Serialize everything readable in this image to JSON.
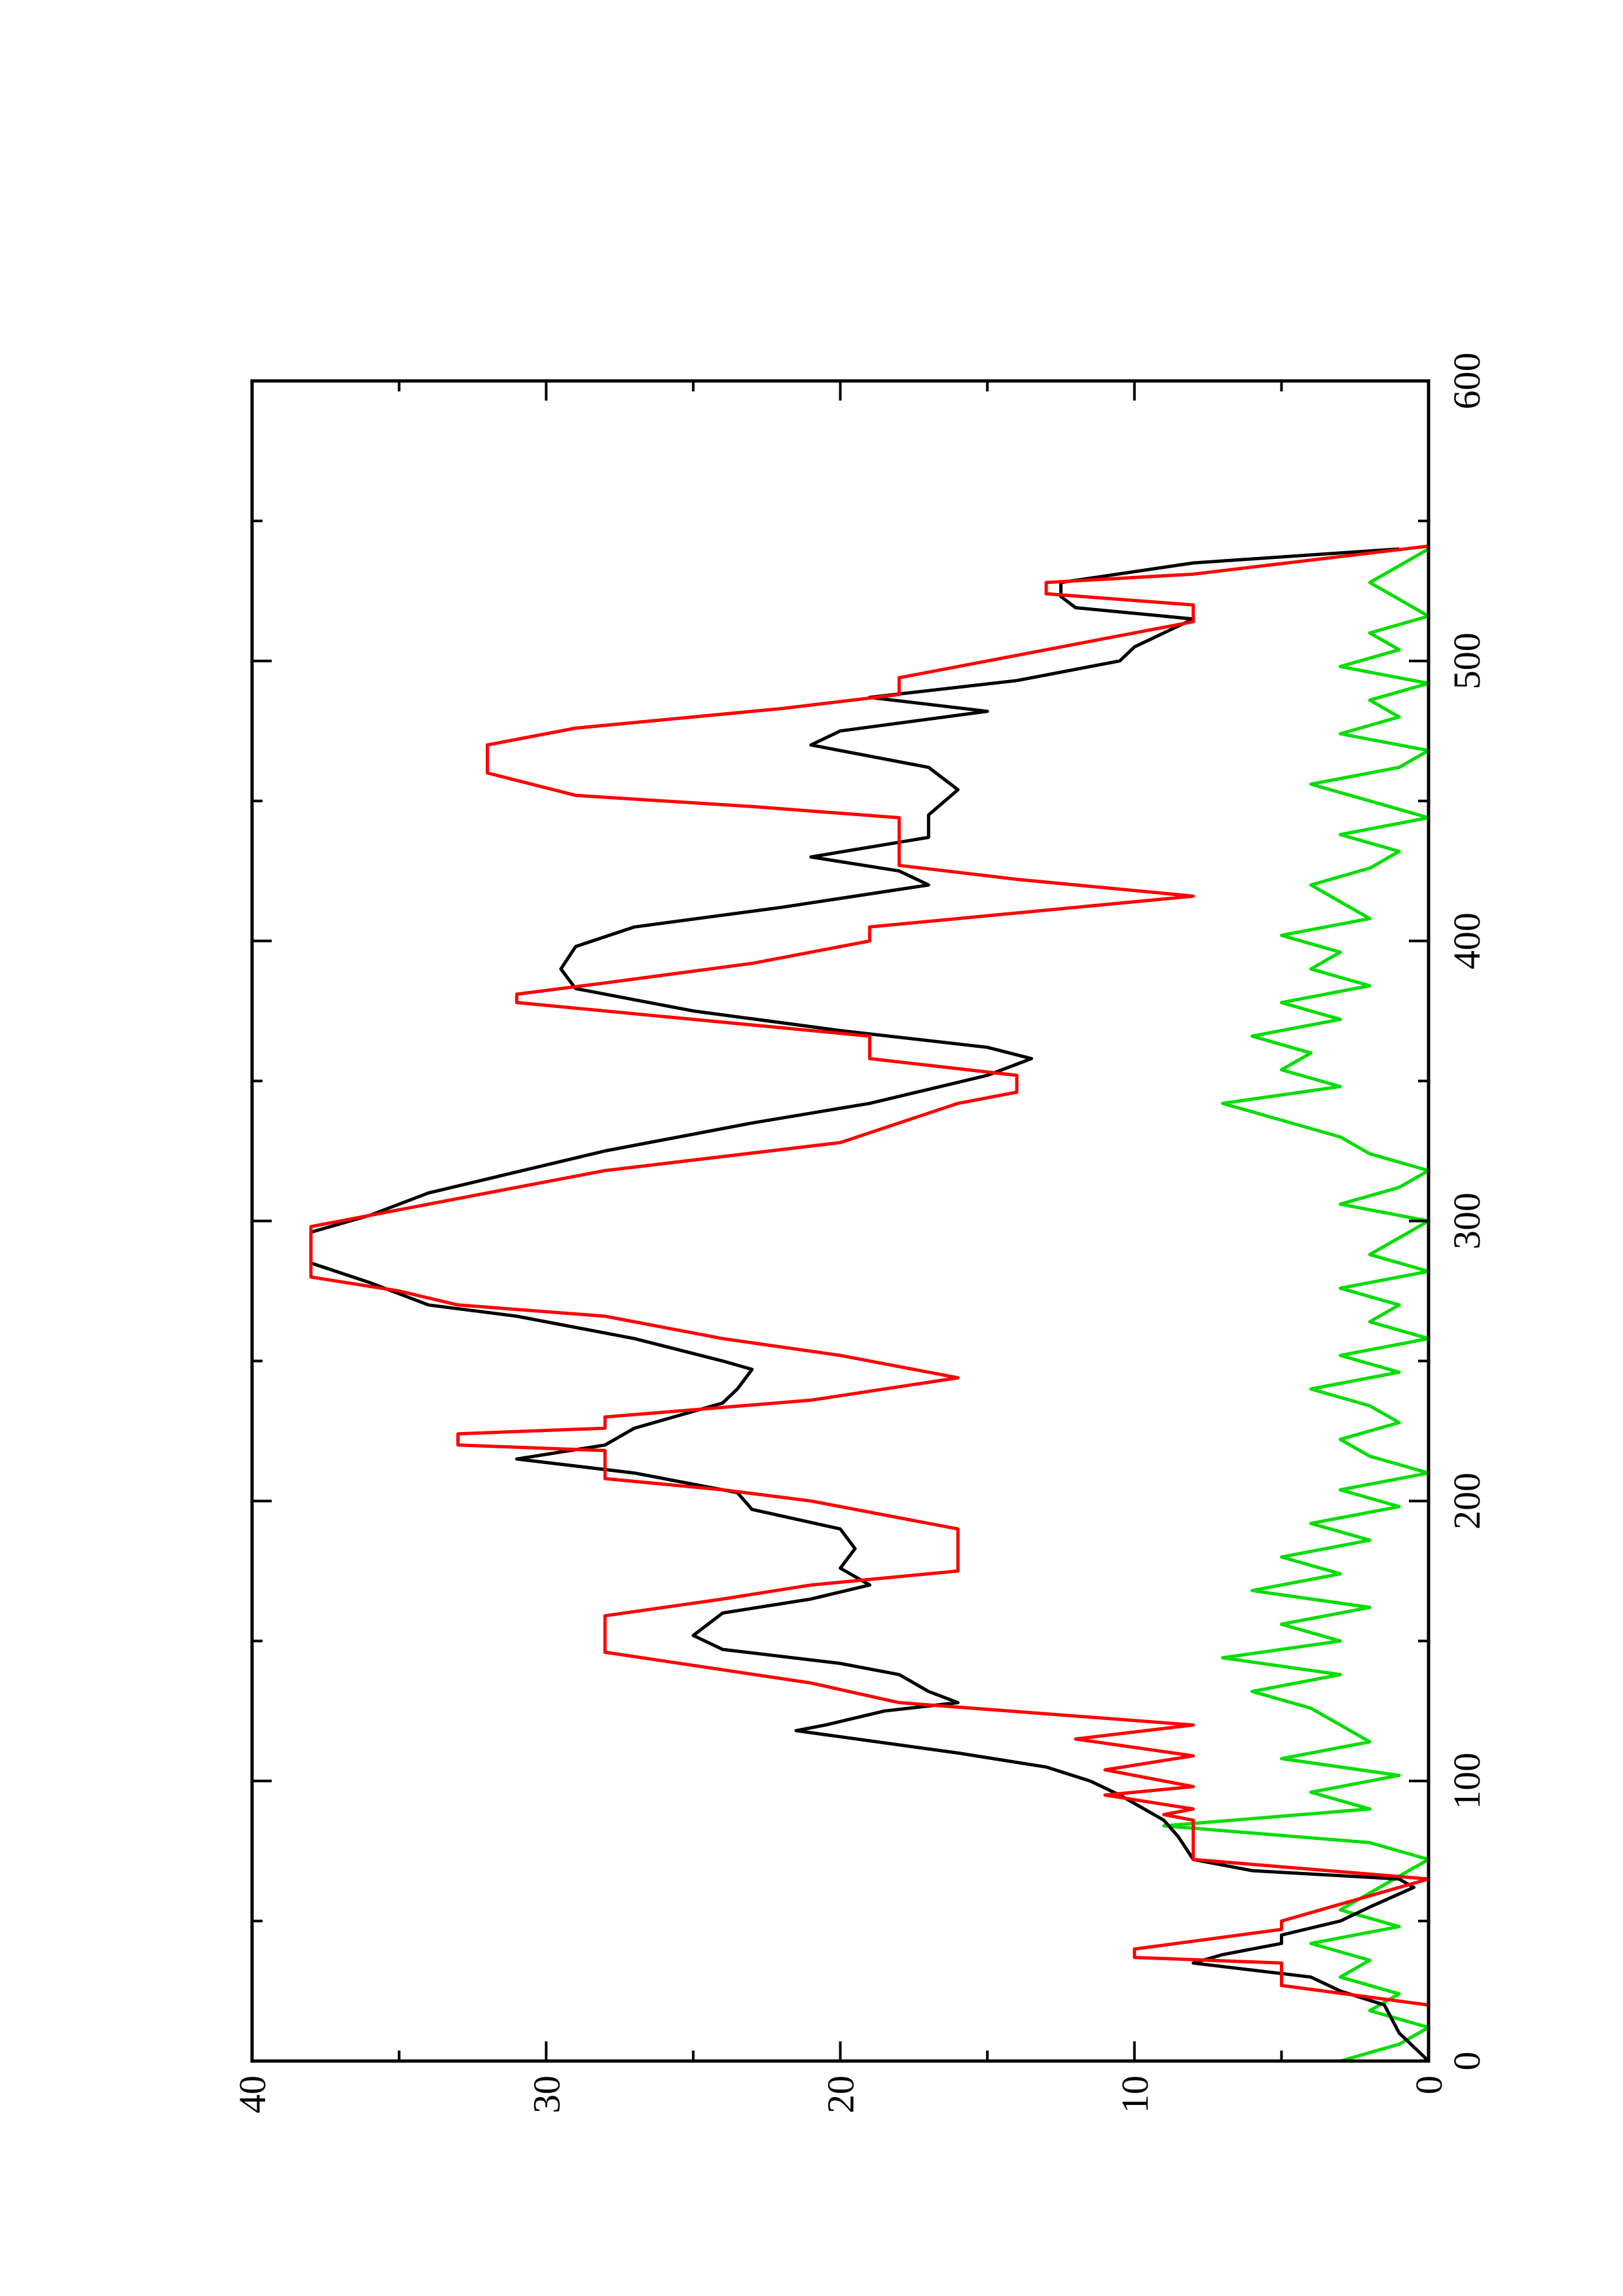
{
  "chart_data": {
    "type": "line",
    "xlim": [
      0,
      600
    ],
    "xticks": [
      0,
      100,
      200,
      300,
      400,
      500,
      600
    ],
    "xticks_minor": [
      50,
      150,
      250,
      350,
      450,
      550
    ],
    "ylim": [
      0,
      40
    ],
    "yticks": [
      0,
      10,
      20,
      30,
      40
    ],
    "yticks_minor": [
      5,
      15,
      25,
      35
    ],
    "rotated": true,
    "series": [
      {
        "color": "#00dd00",
        "x": [
          0,
          6,
          12,
          18,
          24,
          30,
          36,
          42,
          48,
          54,
          60,
          66,
          72,
          78,
          84,
          90,
          96,
          102,
          108,
          114,
          120,
          126,
          132,
          138,
          144,
          150,
          156,
          162,
          168,
          174,
          180,
          186,
          192,
          198,
          204,
          210,
          216,
          222,
          228,
          234,
          240,
          246,
          252,
          258,
          264,
          270,
          276,
          282,
          288,
          294,
          300,
          306,
          312,
          318,
          324,
          330,
          336,
          342,
          348,
          354,
          360,
          366,
          372,
          378,
          384,
          390,
          396,
          402,
          408,
          414,
          420,
          426,
          432,
          438,
          444,
          450,
          456,
          462,
          468,
          474,
          480,
          486,
          492,
          498,
          504,
          510,
          516,
          522,
          528,
          534,
          540
        ],
        "values": [
          3,
          1,
          0,
          2,
          1,
          3,
          2,
          4,
          1,
          3,
          2,
          1,
          0,
          2,
          9,
          2,
          4,
          1,
          5,
          2,
          3,
          4,
          6,
          3,
          7,
          3,
          5,
          2,
          6,
          3,
          5,
          2,
          4,
          1,
          3,
          0,
          2,
          3,
          1,
          2,
          4,
          1,
          3,
          0,
          2,
          1,
          3,
          0,
          2,
          1,
          0,
          3,
          1,
          0,
          2,
          3,
          5,
          7,
          3,
          5,
          4,
          6,
          3,
          5,
          2,
          4,
          3,
          5,
          2,
          3,
          4,
          2,
          1,
          3,
          0,
          2,
          4,
          1,
          0,
          3,
          1,
          2,
          0,
          3,
          1,
          2,
          0,
          1,
          2,
          1,
          0
        ]
      },
      {
        "color": "#000000",
        "x": [
          0,
          10,
          20,
          25,
          30,
          35,
          38,
          42,
          45,
          50,
          55,
          62,
          65,
          68,
          72,
          80,
          86,
          95,
          100,
          105,
          110,
          118,
          120,
          125,
          128,
          132,
          138,
          142,
          147,
          152,
          160,
          165,
          170,
          176,
          183,
          190,
          197,
          203,
          210,
          215,
          220,
          226,
          235,
          240,
          247,
          250,
          258,
          266,
          270,
          278,
          285,
          296,
          302,
          310,
          315,
          325,
          335,
          342,
          347,
          352,
          358,
          362,
          368,
          375,
          383,
          390,
          398,
          405,
          412,
          420,
          425,
          430,
          437,
          445,
          454,
          462,
          470,
          475,
          482,
          487,
          493,
          500,
          505,
          515,
          519,
          523,
          528,
          535,
          540
        ],
        "values": [
          0,
          1,
          1.5,
          3,
          4,
          8,
          7,
          5,
          5,
          3,
          2,
          0.5,
          1,
          6,
          8,
          8.5,
          9,
          10.5,
          11.5,
          13,
          16,
          21.5,
          20.5,
          18.5,
          16,
          17,
          18,
          20,
          24,
          25,
          24,
          21,
          19,
          20,
          19.5,
          20,
          23,
          23.5,
          27,
          31,
          28,
          27,
          24,
          23.5,
          23,
          24,
          27,
          31,
          34,
          36,
          38,
          38,
          36,
          34,
          32,
          28,
          23,
          19,
          17,
          15,
          13.5,
          15,
          20,
          25,
          29,
          29.5,
          29,
          27,
          22,
          17,
          18,
          21,
          17,
          17,
          16,
          17,
          21,
          20,
          15,
          19,
          14,
          10.5,
          10,
          8,
          12,
          12.5,
          12.5,
          8,
          1
        ]
      },
      {
        "color": "#ff0000",
        "x": [
          0,
          20,
          27,
          35,
          37,
          40,
          47,
          50,
          65,
          72,
          86,
          88,
          90,
          95,
          98,
          104,
          109,
          115,
          120,
          128,
          135,
          146,
          159,
          165,
          170,
          175,
          190,
          200,
          204,
          208,
          218,
          220,
          224,
          226,
          230,
          236,
          244,
          252,
          258,
          266,
          270,
          275,
          280,
          298,
          304,
          310,
          318,
          328,
          342,
          346,
          352,
          358,
          366,
          370,
          378,
          381,
          385,
          392,
          400,
          405,
          416,
          422,
          427,
          444,
          448,
          452,
          460,
          470,
          476,
          483,
          488,
          494,
          502,
          508,
          514,
          520,
          524,
          528,
          531,
          541
        ],
        "values": [
          0,
          0,
          5,
          5,
          10,
          10,
          5,
          5,
          0,
          8,
          8,
          9,
          8,
          11,
          8,
          11,
          8,
          12,
          8,
          18,
          21,
          28,
          28,
          24,
          21,
          16,
          16,
          21,
          24,
          28,
          28,
          33,
          33,
          28,
          28,
          21,
          16,
          20,
          24,
          28,
          33,
          35,
          38,
          38,
          35,
          32,
          28,
          20,
          16,
          14,
          14,
          19,
          19,
          23,
          31,
          31,
          28,
          23,
          19,
          19,
          8,
          14,
          18,
          18,
          23,
          29,
          32,
          32,
          29,
          22,
          18,
          18,
          14,
          11,
          8,
          8,
          13,
          13,
          8,
          0
        ]
      }
    ]
  }
}
